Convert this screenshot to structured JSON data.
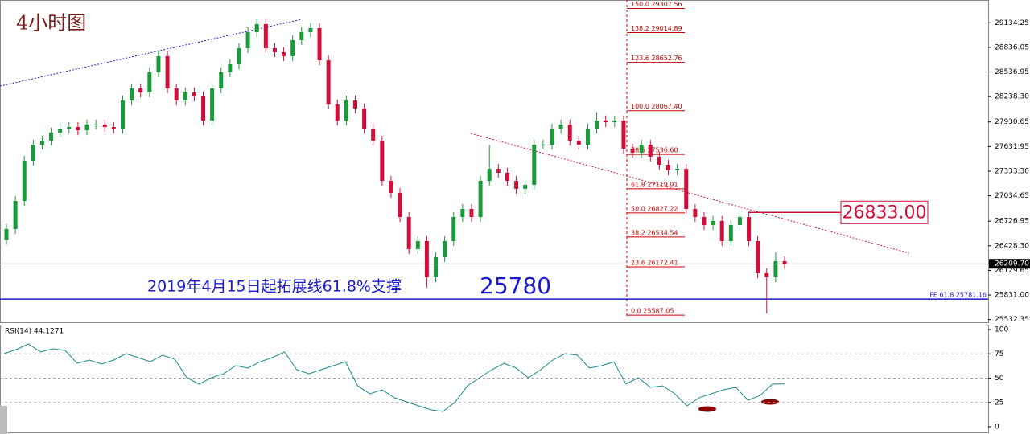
{
  "chart_data": [
    {
      "type": "candlestick",
      "title": "4小时图",
      "annotations": [
        "2019年4月15日起拓展线61.8%支撑",
        "25780"
      ],
      "up_color": "#1a9a3a",
      "down_color": "#d0103a",
      "ylim": [
        25500,
        29410
      ],
      "yticks": [
        29134.25,
        28836.05,
        28536.95,
        {
          "value": 28238.3,
          "label": "28238.30"
        },
        27930.65,
        27631.95,
        {
          "value": 27333.3,
          "label": "27333.30"
        },
        27034.65,
        26726.95,
        {
          "value": 26428.3,
          "label": "26428.30"
        },
        26129.65,
        {
          "value": 25831.0,
          "label": "25831.00"
        },
        25532.35
      ],
      "current_price": {
        "value": 26209.7,
        "label": "26209.70"
      },
      "fe_line": {
        "value": 25781.16,
        "label": "FE 61.8  25781.16"
      },
      "resistance": {
        "value": 26833,
        "label": "26833.00"
      },
      "fib_levels": [
        {
          "value": 29307.56,
          "label": "150.0  29307.56"
        },
        {
          "value": 29014.89,
          "label": "138.2  29014.89"
        },
        {
          "value": 28652.76,
          "label": "123.6  28652.76"
        },
        {
          "value": 28067.4,
          "label": "100.0  28067.40"
        },
        {
          "value": 27536.6,
          "label": "78.6  27536.60"
        },
        {
          "value": 27119.91,
          "label": "61.8  27119.91"
        },
        {
          "value": 26827.22,
          "label": "50.0  26827.22"
        },
        {
          "value": 26534.54,
          "label": "38.2  26534.54"
        },
        {
          "value": 26172.41,
          "label": "23.6  26172.41"
        },
        {
          "value": 25587.05,
          "label": "0.0  25587.05"
        }
      ],
      "open": [
        26500,
        26631,
        26972,
        27460,
        27655,
        27704,
        27801,
        27850,
        27869,
        27830,
        27899,
        27899,
        27869,
        27850,
        28191,
        28338,
        28289,
        28533,
        28728,
        28338,
        28191,
        28289,
        28240,
        27948,
        28338,
        28533,
        28630,
        28825,
        29020,
        29118,
        28825,
        28776,
        28728,
        28923,
        29020,
        29069,
        28679,
        28143,
        27948,
        28191,
        28094,
        27850,
        27704,
        27216,
        27070,
        26777,
        26387,
        26485,
        26046,
        26290,
        26485,
        26777,
        26875,
        26777,
        27216,
        27362,
        27314,
        27216,
        27119,
        27167,
        27655,
        27655,
        27850,
        27899,
        27704,
        27655,
        27850,
        27948,
        27928,
        27948,
        27606,
        27557,
        27655,
        27509,
        27411,
        27343,
        27362,
        26875,
        26777,
        26680,
        26729,
        26485,
        26680,
        26777,
        26485,
        26095,
        26046,
        26241
      ],
      "high": [
        26691,
        27032,
        27520,
        27715,
        27764,
        27861,
        27910,
        27929,
        27929,
        27959,
        27959,
        27959,
        27929,
        28251,
        28398,
        28398,
        28593,
        28788,
        28788,
        28398,
        28349,
        28349,
        28300,
        28398,
        28593,
        28690,
        28885,
        29080,
        29176,
        29178,
        28885,
        28836,
        28983,
        29080,
        29129,
        29129,
        28739,
        28203,
        28251,
        28251,
        28154,
        27910,
        27764,
        27276,
        27130,
        26837,
        26545,
        26545,
        26350,
        26545,
        26837,
        26935,
        26935,
        27276,
        27650,
        27422,
        27374,
        27276,
        27227,
        27715,
        27715,
        27910,
        27959,
        27959,
        27764,
        27910,
        28050,
        28008,
        28008,
        28008,
        27666,
        27715,
        27715,
        27569,
        27471,
        27422,
        27422,
        26935,
        26837,
        26789,
        26789,
        26740,
        26837,
        26837,
        26545,
        26155,
        26350,
        26301
      ],
      "low": [
        26440,
        26571,
        26912,
        27400,
        27595,
        27644,
        27741,
        27790,
        27770,
        27770,
        27839,
        27809,
        27790,
        27790,
        28131,
        28229,
        28229,
        28473,
        28278,
        28131,
        28131,
        28180,
        27888,
        27888,
        28278,
        28473,
        28570,
        28765,
        28960,
        28765,
        28716,
        28668,
        28668,
        28863,
        28960,
        28619,
        28083,
        27888,
        27888,
        28034,
        27790,
        27644,
        27156,
        27010,
        26717,
        26327,
        26327,
        25919,
        25986,
        26230,
        26425,
        26717,
        26717,
        26717,
        27156,
        27254,
        27156,
        27059,
        27059,
        27107,
        27595,
        27595,
        27790,
        27644,
        27595,
        27595,
        27790,
        27868,
        27868,
        27546,
        27497,
        27497,
        27449,
        27351,
        27283,
        27283,
        26815,
        26717,
        26620,
        26620,
        26425,
        26425,
        26620,
        26425,
        26035,
        25607,
        25986,
        26150
      ],
      "close": [
        26631,
        26972,
        27460,
        27655,
        27704,
        27801,
        27850,
        27869,
        27830,
        27899,
        27899,
        27869,
        27850,
        28191,
        28338,
        28289,
        28533,
        28728,
        28338,
        28191,
        28289,
        28240,
        27948,
        28338,
        28533,
        28630,
        28825,
        29020,
        29118,
        28825,
        28776,
        28728,
        28923,
        29020,
        29069,
        28679,
        28143,
        27948,
        28191,
        28094,
        27850,
        27704,
        27216,
        27070,
        26777,
        26387,
        26485,
        26046,
        26290,
        26485,
        26777,
        26875,
        26777,
        27216,
        27362,
        27314,
        27216,
        27119,
        27167,
        27655,
        27655,
        27850,
        27899,
        27704,
        27655,
        27850,
        27948,
        27928,
        27948,
        27606,
        27557,
        27655,
        27509,
        27411,
        27343,
        27362,
        26875,
        26777,
        26680,
        26729,
        26485,
        26680,
        26777,
        26485,
        26095,
        26046,
        26241,
        26210
      ]
    },
    {
      "type": "line",
      "title": "RSI(14) 44.1271",
      "color": "#1a8a8a",
      "ylim": [
        0,
        100
      ],
      "yticks": [
        100,
        75,
        50,
        25,
        0
      ],
      "gridlines": [
        75,
        50,
        25
      ],
      "values": [
        75.2,
        79.3,
        85.1,
        76.9,
        80.2,
        78.5,
        65.3,
        68.6,
        64.5,
        68.6,
        75.2,
        71.1,
        66.9,
        73.6,
        69.4,
        50.4,
        43.8,
        50.4,
        54.5,
        62.8,
        60.3,
        66.9,
        71.1,
        76.9,
        58.7,
        54.5,
        58.7,
        62.8,
        66.9,
        42.1,
        33.9,
        38.0,
        29.8,
        25.6,
        21.5,
        17.4,
        15.7,
        25.6,
        42.1,
        50.4,
        58.7,
        65.3,
        60.3,
        50.4,
        58.7,
        68.6,
        75.2,
        73.6,
        60.3,
        62.8,
        66.9,
        43.8,
        50.4,
        40.5,
        42.1,
        33.9,
        21.5,
        29.8,
        33.9,
        38.0,
        40.5,
        27.3,
        32.2,
        43.8,
        44.1
      ]
    }
  ]
}
